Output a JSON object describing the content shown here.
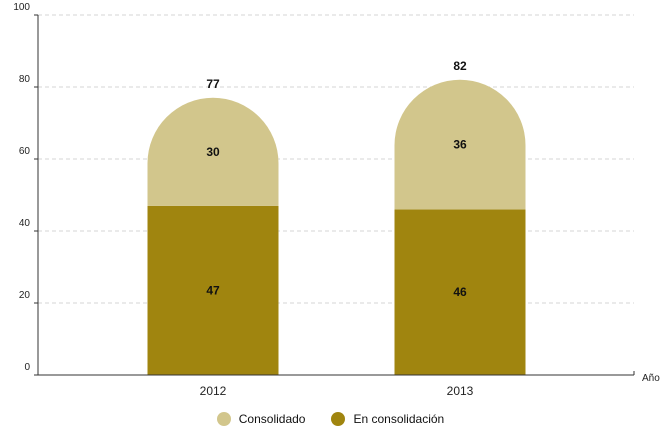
{
  "chart_data": {
    "type": "bar",
    "stacked": true,
    "categories": [
      "2012",
      "2013"
    ],
    "series": [
      {
        "name": "En consolidación",
        "values": [
          47,
          46
        ],
        "color": "#a0850f"
      },
      {
        "name": "Consolidado",
        "values": [
          30,
          36
        ],
        "color": "#d2c68c"
      }
    ],
    "totals": [
      77,
      82
    ],
    "xlabel": "Año",
    "ylabel": "",
    "ylim": [
      0,
      100
    ],
    "yticks": [
      0,
      20,
      40,
      60,
      80,
      100
    ],
    "grid": true,
    "legend_placement": "bottom"
  },
  "legend": {
    "items": [
      {
        "label": "Consolidado",
        "color": "#d2c68c"
      },
      {
        "label": "En consolidación",
        "color": "#a0850f"
      }
    ]
  }
}
